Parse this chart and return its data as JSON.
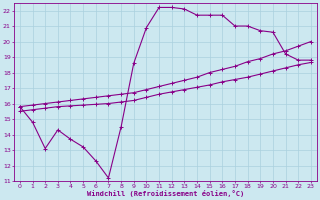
{
  "xlabel": "Windchill (Refroidissement éolien,°C)",
  "bg_color": "#cce8f0",
  "grid_color": "#aad0de",
  "line_color": "#880088",
  "xlim": [
    -0.5,
    23.5
  ],
  "ylim": [
    11,
    22.5
  ],
  "xticks": [
    0,
    1,
    2,
    3,
    4,
    5,
    6,
    7,
    8,
    9,
    10,
    11,
    12,
    13,
    14,
    15,
    16,
    17,
    18,
    19,
    20,
    21,
    22,
    23
  ],
  "yticks": [
    11,
    12,
    13,
    14,
    15,
    16,
    17,
    18,
    19,
    20,
    21,
    22
  ],
  "curve1_x": [
    0,
    1,
    2,
    3,
    4,
    5,
    6,
    7,
    8,
    9,
    10,
    11,
    12,
    13,
    14,
    15,
    16,
    17,
    18,
    19,
    20,
    21,
    22,
    23
  ],
  "curve1_y": [
    15.8,
    14.8,
    13.1,
    14.3,
    13.7,
    13.2,
    12.3,
    11.2,
    14.5,
    18.6,
    20.9,
    22.2,
    22.2,
    22.1,
    21.7,
    21.7,
    21.7,
    21.0,
    21.0,
    20.7,
    20.6,
    19.2,
    18.8,
    18.8
  ],
  "curve2_x": [
    0,
    23
  ],
  "curve2_y": [
    15.8,
    20.0
  ],
  "curve3_x": [
    0,
    23
  ],
  "curve3_y": [
    15.5,
    18.6
  ],
  "diag2_x": [
    0,
    1,
    2,
    3,
    4,
    5,
    6,
    7,
    8,
    9,
    10,
    11,
    12,
    13,
    14,
    15,
    16,
    17,
    18,
    19,
    20,
    21,
    22,
    23
  ],
  "diag2_y": [
    15.8,
    15.9,
    16.0,
    16.1,
    16.2,
    16.3,
    16.4,
    16.5,
    16.6,
    16.7,
    16.9,
    17.1,
    17.3,
    17.5,
    17.7,
    18.0,
    18.2,
    18.4,
    18.7,
    18.9,
    19.2,
    19.4,
    19.7,
    20.0
  ],
  "diag3_y": [
    15.5,
    15.6,
    15.7,
    15.8,
    15.85,
    15.9,
    15.95,
    16.0,
    16.1,
    16.2,
    16.4,
    16.6,
    16.75,
    16.9,
    17.05,
    17.2,
    17.4,
    17.55,
    17.7,
    17.9,
    18.1,
    18.3,
    18.5,
    18.65
  ]
}
